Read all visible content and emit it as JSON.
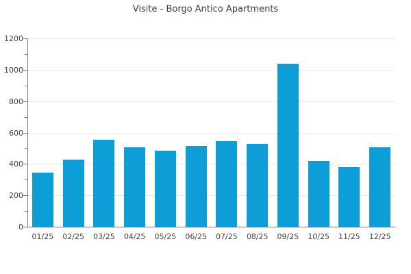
{
  "chart_data": {
    "type": "bar",
    "title": "Visite - Borgo Antico Apartments",
    "categories": [
      "01/25",
      "02/25",
      "03/25",
      "04/25",
      "05/25",
      "06/25",
      "07/25",
      "08/25",
      "09/25",
      "10/25",
      "11/25",
      "12/25"
    ],
    "values": [
      345,
      430,
      555,
      505,
      485,
      515,
      545,
      530,
      1038,
      420,
      378,
      508
    ],
    "xlabel": "",
    "ylabel": "",
    "ylim": [
      0,
      1200
    ],
    "y_ticks": [
      0,
      200,
      400,
      600,
      800,
      1000,
      1200
    ],
    "y_minor_ticks": [
      100,
      300,
      500,
      700,
      900,
      1100
    ],
    "grid": "horizontal-at-major-ticks",
    "legend": "none",
    "bar_color": "#0d9ed8",
    "grid_color": "#e7e7e7",
    "axis_color": "#7a7a7a",
    "text_color": "#3f3f3f",
    "background": "#ffffff"
  }
}
